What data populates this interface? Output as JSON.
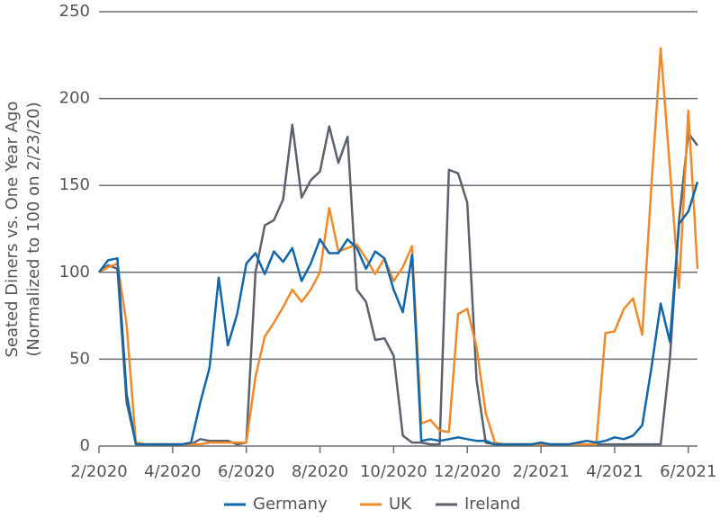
{
  "chart_data": {
    "type": "line",
    "ylabel": [
      "Seated Diners vs. One Year Ago",
      "(Normalized to 100 on 2/23/20)"
    ],
    "x": [
      2,
      2.25,
      2.5,
      2.75,
      3,
      3.25,
      3.5,
      3.75,
      4,
      4.25,
      4.5,
      4.75,
      5,
      5.25,
      5.5,
      5.75,
      6,
      6.25,
      6.5,
      6.75,
      7,
      7.25,
      7.5,
      7.75,
      8,
      8.25,
      8.5,
      8.75,
      9,
      9.25,
      9.5,
      9.75,
      10,
      10.25,
      10.5,
      10.75,
      11,
      11.25,
      11.5,
      11.75,
      12,
      12.25,
      12.5,
      12.75,
      13,
      13.25,
      13.5,
      13.75,
      14,
      14.25,
      14.5,
      14.75,
      15,
      15.25,
      15.5,
      15.75,
      16,
      16.25,
      16.5,
      16.75,
      17,
      17.25,
      17.5,
      17.75,
      18,
      18.25
    ],
    "series": [
      {
        "name": "Germany",
        "color": "#1066a8",
        "values": [
          100,
          107,
          108,
          30,
          1,
          1,
          1,
          1,
          1,
          1,
          2,
          25,
          45,
          97,
          58,
          76,
          105,
          111,
          99,
          112,
          106,
          114,
          95,
          105,
          119,
          111,
          111,
          119,
          114,
          102,
          112,
          108,
          90,
          77,
          110,
          3,
          4,
          3,
          4,
          5,
          4,
          3,
          3,
          1,
          1,
          1,
          1,
          1,
          2,
          1,
          1,
          1,
          2,
          3,
          2,
          3,
          5,
          4,
          6,
          12,
          45,
          82,
          60,
          128,
          135,
          152
        ]
      },
      {
        "name": "UK",
        "color": "#f0892a",
        "values": [
          100,
          103,
          105,
          70,
          2,
          1,
          1,
          1,
          1,
          1,
          1,
          1,
          2,
          2,
          2,
          2,
          2,
          40,
          63,
          71,
          80,
          90,
          83,
          90,
          100,
          137,
          112,
          114,
          116,
          108,
          99,
          108,
          95,
          103,
          115,
          13,
          15,
          9,
          8,
          76,
          79,
          57,
          19,
          2,
          1,
          1,
          1,
          1,
          1,
          1,
          1,
          1,
          1,
          1,
          1,
          65,
          66,
          79,
          85,
          64,
          150,
          229,
          160,
          91,
          193,
          102
        ]
      },
      {
        "name": "Ireland",
        "color": "#5a626e",
        "values": [
          100,
          104,
          102,
          25,
          2,
          1,
          1,
          1,
          1,
          1,
          1,
          4,
          3,
          3,
          3,
          1,
          2,
          100,
          127,
          130,
          142,
          185,
          143,
          153,
          158,
          184,
          163,
          178,
          90,
          83,
          61,
          62,
          52,
          6,
          2,
          2,
          1,
          1,
          159,
          157,
          140,
          38,
          2,
          1,
          1,
          1,
          1,
          1,
          1,
          1,
          1,
          1,
          1,
          1,
          1,
          1,
          1,
          1,
          1,
          1,
          1,
          1,
          50,
          130,
          180,
          173
        ]
      }
    ],
    "xlim": [
      2,
      18.25
    ],
    "xticks": [
      {
        "value": 2,
        "label": "2/2020"
      },
      {
        "value": 4,
        "label": "4/2020"
      },
      {
        "value": 6,
        "label": "6/2020"
      },
      {
        "value": 8,
        "label": "8/2020"
      },
      {
        "value": 10,
        "label": "10/2020"
      },
      {
        "value": 12,
        "label": "12/2020"
      },
      {
        "value": 14,
        "label": "2/2021"
      },
      {
        "value": 16,
        "label": "4/2021"
      },
      {
        "value": 18,
        "label": "6/2021"
      }
    ],
    "ylim": [
      0,
      250
    ],
    "yticks": [
      0,
      50,
      100,
      150,
      200,
      250
    ],
    "grid": true,
    "legend": "bottom"
  }
}
